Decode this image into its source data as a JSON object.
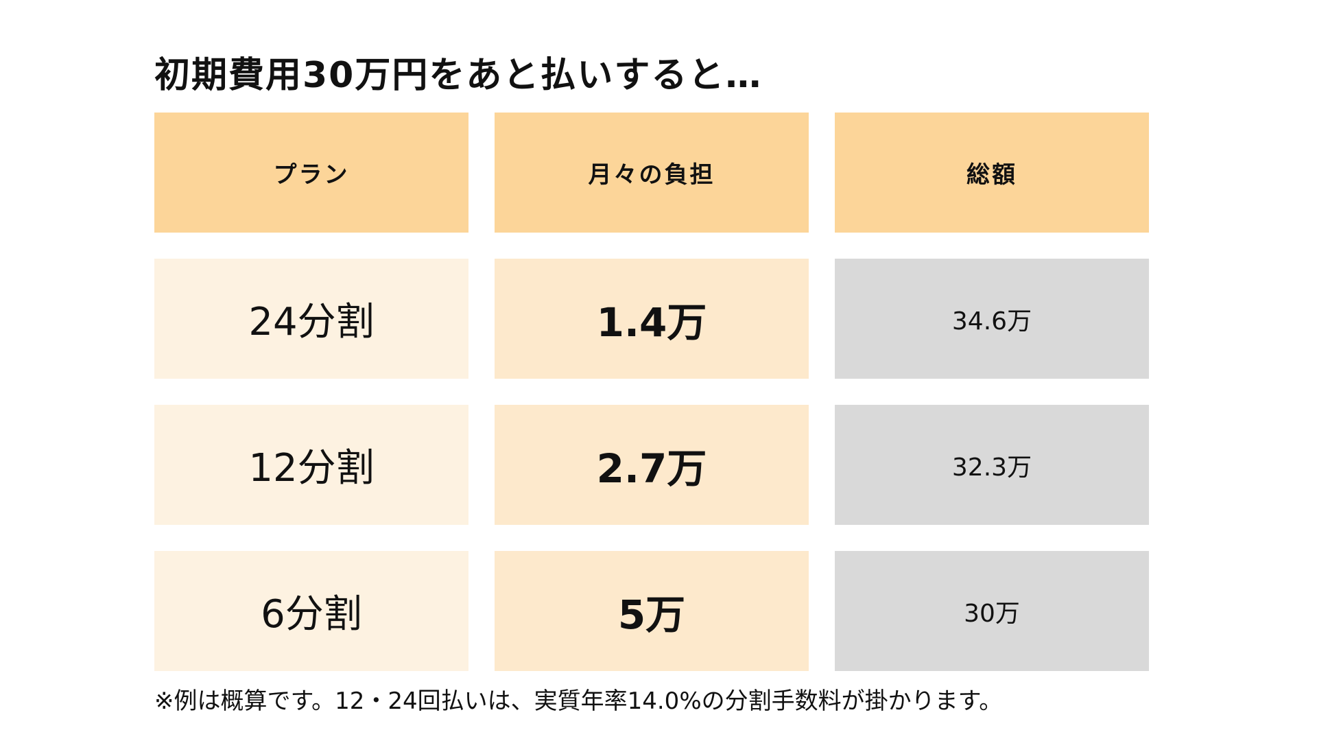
{
  "title": "初期費用30万円をあと払いすると…",
  "table": {
    "headers": [
      "プラン",
      "月々の負担",
      "総額"
    ],
    "rows": [
      {
        "plan": "24分割",
        "monthly": "1.4万",
        "total": "34.6万"
      },
      {
        "plan": "12分割",
        "monthly": "2.7万",
        "total": "32.3万"
      },
      {
        "plan": "6分割",
        "monthly": "5万",
        "total": "30万"
      }
    ]
  },
  "footnote": "※例は概算です。12・24回払いは、実質年率14.0%の分割手数料が掛かります。",
  "colors": {
    "header_bg": "#fcd599",
    "plan_bg": "#fdf2e1",
    "monthly_bg": "#fde9cc",
    "total_bg": "#d9d9d9"
  }
}
